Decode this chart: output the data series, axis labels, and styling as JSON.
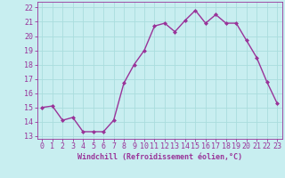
{
  "x": [
    0,
    1,
    2,
    3,
    4,
    5,
    6,
    7,
    8,
    9,
    10,
    11,
    12,
    13,
    14,
    15,
    16,
    17,
    18,
    19,
    20,
    21,
    22,
    23
  ],
  "y": [
    15.0,
    15.1,
    14.1,
    14.3,
    13.3,
    13.3,
    13.3,
    14.1,
    16.7,
    18.0,
    19.0,
    20.7,
    20.9,
    20.3,
    21.1,
    21.8,
    20.9,
    21.5,
    20.9,
    20.9,
    19.7,
    18.5,
    16.8,
    15.3
  ],
  "line_color": "#993399",
  "marker": "D",
  "marker_size": 2,
  "bg_color": "#c8eef0",
  "grid_color": "#aadddd",
  "xlabel": "Windchill (Refroidissement éolien,°C)",
  "xlabel_color": "#993399",
  "tick_color": "#993399",
  "label_color": "#993399",
  "ylim": [
    12.8,
    22.4
  ],
  "yticks": [
    13,
    14,
    15,
    16,
    17,
    18,
    19,
    20,
    21,
    22
  ],
  "xlim": [
    -0.5,
    23.5
  ],
  "xticks": [
    0,
    1,
    2,
    3,
    4,
    5,
    6,
    7,
    8,
    9,
    10,
    11,
    12,
    13,
    14,
    15,
    16,
    17,
    18,
    19,
    20,
    21,
    22,
    23
  ],
  "tick_fontsize": 6,
  "xlabel_fontsize": 6,
  "linewidth": 1.0
}
